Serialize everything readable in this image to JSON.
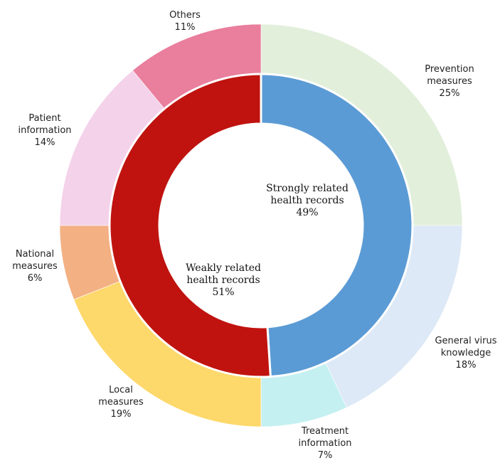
{
  "chart_data": {
    "type": "pie",
    "inner_ring": [
      {
        "lines": [
          "Strongly related",
          "health records"
        ],
        "value_label": "49%",
        "value": 49,
        "color": "#5b9bd5"
      },
      {
        "lines": [
          "Weakly related",
          "health records"
        ],
        "value_label": "51%",
        "value": 51,
        "color": "#c0130f"
      }
    ],
    "outer_ring": [
      {
        "lines": [
          "Prevention",
          "measures"
        ],
        "value_label": "25%",
        "value": 25,
        "color": "#e2efdb"
      },
      {
        "lines": [
          "General virus",
          "knowledge"
        ],
        "value_label": "18%",
        "value": 18,
        "color": "#dde9f6"
      },
      {
        "lines": [
          "Treatment",
          "information"
        ],
        "value_label": "7%",
        "value": 7,
        "color": "#c5f0f1"
      },
      {
        "lines": [
          "Local",
          "measures"
        ],
        "value_label": "19%",
        "value": 19,
        "color": "#fdd86a"
      },
      {
        "lines": [
          "National",
          "measures"
        ],
        "value_label": "6%",
        "value": 6,
        "color": "#f3b083"
      },
      {
        "lines": [
          "Patient",
          "information"
        ],
        "value_label": "14%",
        "value": 14,
        "color": "#f4d2ea"
      },
      {
        "lines": [
          "Others"
        ],
        "value_label": "11%",
        "value": 11,
        "color": "#e97e9d"
      }
    ]
  }
}
